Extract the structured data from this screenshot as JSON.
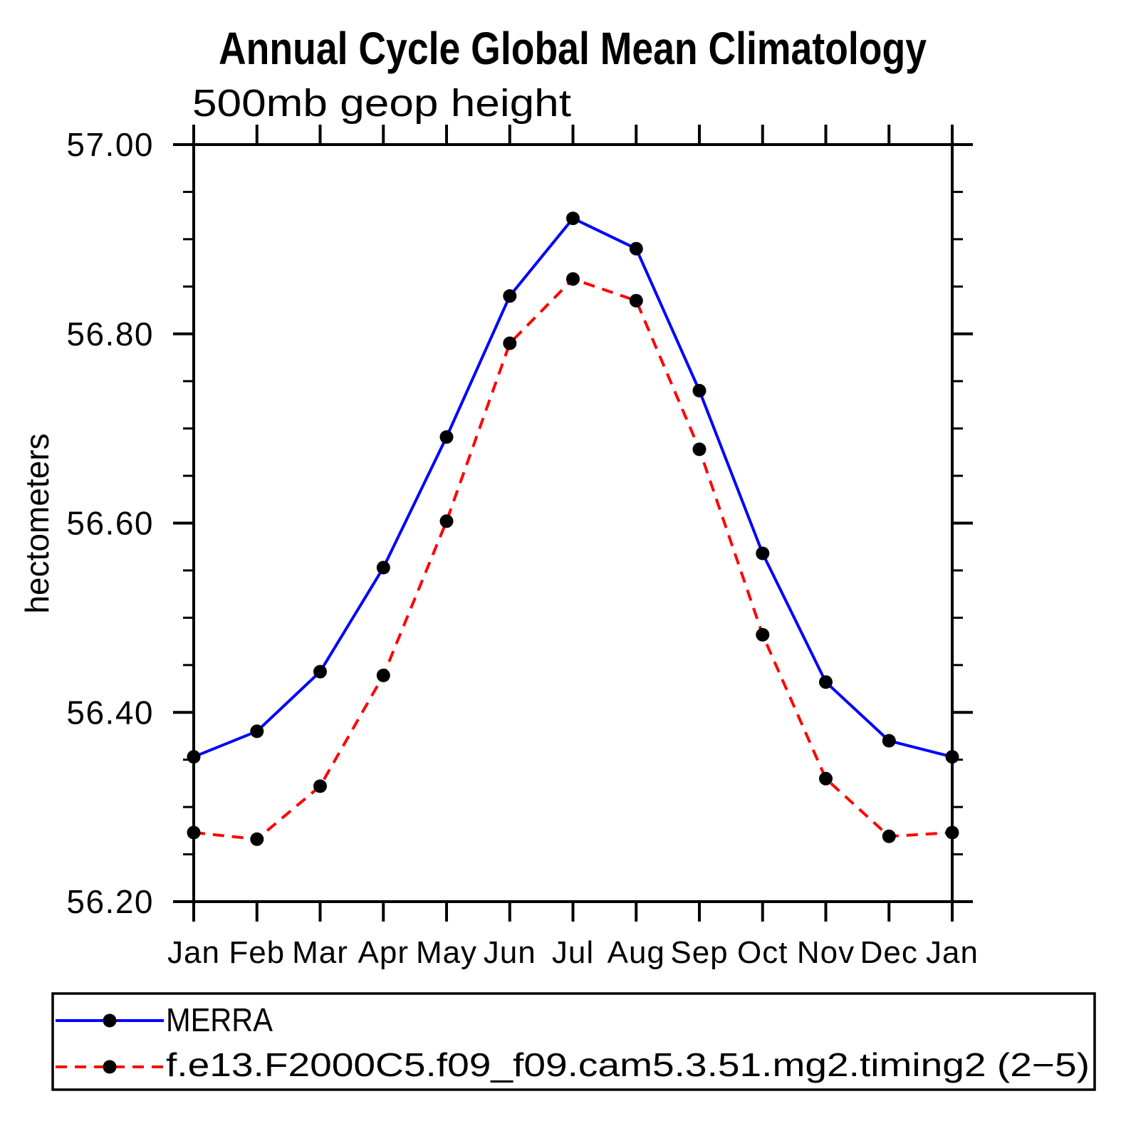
{
  "chart_data": {
    "type": "line",
    "title": "Annual Cycle Global Mean Climatology",
    "subtitle": "500mb geop height",
    "ylabel": "hectometers",
    "x_labels": [
      "Jan",
      "Feb",
      "Mar",
      "Apr",
      "May",
      "Jun",
      "Jul",
      "Aug",
      "Sep",
      "Oct",
      "Nov",
      "Dec",
      "Jan"
    ],
    "ylim": [
      56.2,
      57.0
    ],
    "y_major_ticks": [
      57.0,
      56.8,
      56.6,
      56.4,
      56.2
    ],
    "y_major_tick_labels": [
      "57.00",
      "56.80",
      "56.60",
      "56.40",
      "56.20"
    ],
    "y_minor_step": 0.05,
    "grid": false,
    "legend_position": "bottom-left-box",
    "marker": "filled-circle",
    "marker_color": "#000000",
    "series": [
      {
        "name": "MERRA",
        "color": "#0000ff",
        "line_style": "solid",
        "values": [
          56.353,
          56.38,
          56.443,
          56.553,
          56.691,
          56.84,
          56.922,
          56.89,
          56.74,
          56.568,
          56.432,
          56.37,
          56.353
        ]
      },
      {
        "name": "f.e13.F2000C5.f09_f09.cam5.3.51.mg2.timing2 (2−5)",
        "color": "#ff0000",
        "line_style": "dashed",
        "values": [
          56.273,
          56.266,
          56.322,
          56.439,
          56.602,
          56.79,
          56.858,
          56.835,
          56.678,
          56.482,
          56.33,
          56.269,
          56.273
        ]
      }
    ]
  }
}
